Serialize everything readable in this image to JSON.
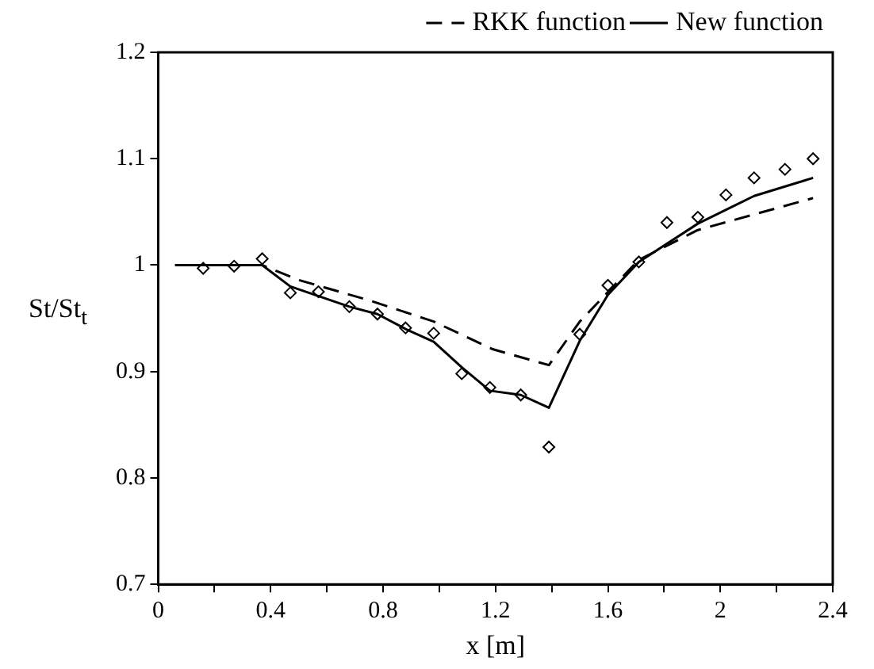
{
  "chart_data": {
    "type": "line",
    "xlabel": "x [m]",
    "ylabel": "St/St$_{t}$",
    "xlim": [
      0,
      2.4
    ],
    "xticks": [
      0,
      {
        "value": 0.2,
        "label": null
      },
      0.4,
      {
        "value": 0.6,
        "label": null
      },
      0.8,
      {
        "value": 1.0,
        "label": null
      },
      1.2,
      {
        "value": 1.4,
        "label": null
      },
      1.6,
      {
        "value": 1.8,
        "label": null
      },
      2,
      {
        "value": 2.2,
        "label": null
      },
      2.4
    ],
    "ylim": [
      0.7,
      1.2
    ],
    "yticks": [
      0.7,
      0.8,
      0.9,
      1,
      1.1,
      1.2
    ],
    "grid": false,
    "legend": "top right",
    "series": [
      {
        "name": "RKK function",
        "color": "#000000",
        "line_style": "dashed",
        "marker": "none",
        "x": [
          0.06,
          0.37,
          0.5,
          0.75,
          0.98,
          1.19,
          1.39,
          1.5,
          1.71,
          1.92,
          2.33
        ],
        "values": [
          1.0,
          1.0,
          0.986,
          0.967,
          0.947,
          0.921,
          0.906,
          0.947,
          1.005,
          1.033,
          1.063
        ]
      },
      {
        "name": "New function",
        "color": "#000000",
        "line_style": "solid",
        "marker": "none",
        "x": [
          0.06,
          0.37,
          0.47,
          0.68,
          0.78,
          0.88,
          0.98,
          1.08,
          1.18,
          1.29,
          1.39,
          1.5,
          1.6,
          1.71,
          1.92,
          2.12,
          2.33
        ],
        "values": [
          1.0,
          1.0,
          0.98,
          0.961,
          0.954,
          0.94,
          0.928,
          0.904,
          0.882,
          0.878,
          0.866,
          0.929,
          0.972,
          1.003,
          1.039,
          1.065,
          1.082
        ]
      },
      {
        "type": "scatter",
        "color": "#000000",
        "marker": "diamond",
        "x": [
          0.16,
          0.27,
          0.37,
          0.47,
          0.57,
          0.68,
          0.78,
          0.88,
          0.98,
          1.08,
          1.18,
          1.29,
          1.39,
          1.5,
          1.6,
          1.71,
          1.81,
          1.92,
          2.02,
          2.12,
          2.23,
          2.33
        ],
        "values": [
          0.997,
          0.999,
          1.006,
          0.974,
          0.975,
          0.961,
          0.954,
          0.941,
          0.936,
          0.898,
          0.885,
          0.878,
          0.829,
          0.935,
          0.981,
          1.003,
          1.04,
          1.045,
          1.066,
          1.082,
          1.09,
          1.1
        ]
      }
    ]
  }
}
